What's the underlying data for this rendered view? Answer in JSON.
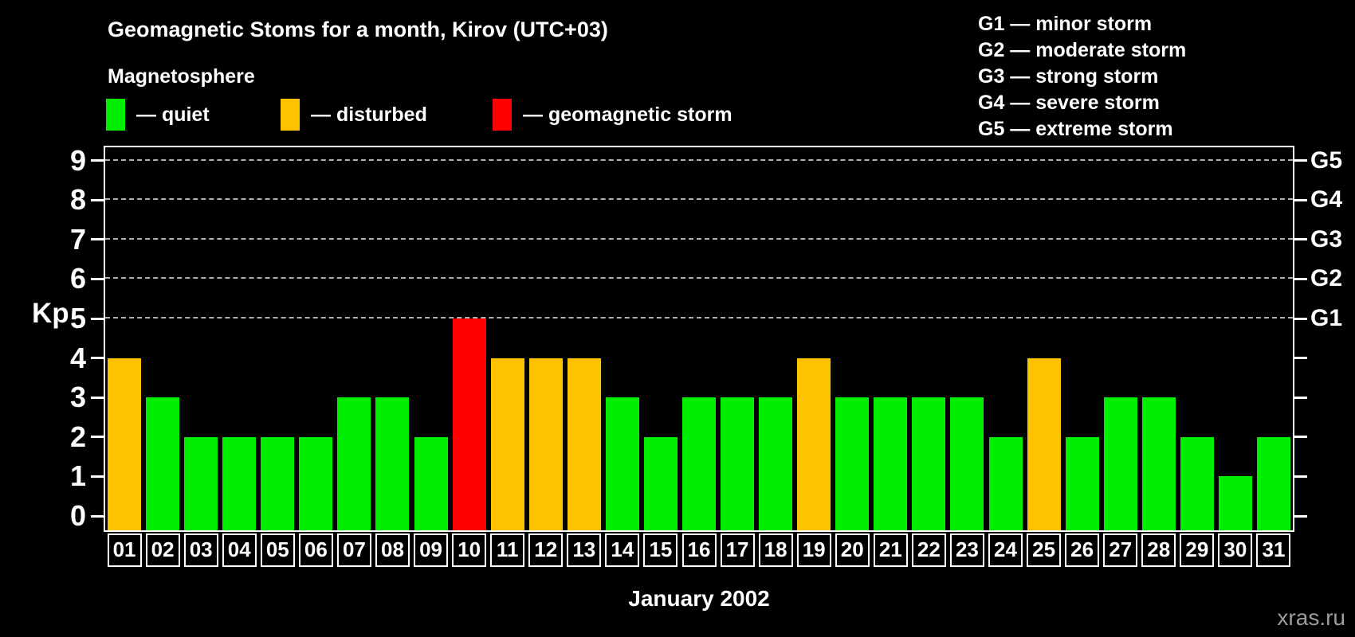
{
  "title": "Geomagnetic Stoms for a month, Kirov (UTC+03)",
  "legend": {
    "heading": "Magnetosphere",
    "items": [
      {
        "key": "quiet",
        "label": "— quiet",
        "color": "#00ee00"
      },
      {
        "key": "disturbed",
        "label": "— disturbed",
        "color": "#ffc200"
      },
      {
        "key": "storm",
        "label": "— geomagnetic storm",
        "color": "#ff0000"
      }
    ]
  },
  "storm_scale": {
    "items": [
      "G1 — minor storm",
      "G2 — moderate storm",
      "G3 — strong storm",
      "G4 — severe storm",
      "G5 — extreme storm"
    ]
  },
  "watermark": "xras.ru",
  "chart_data": {
    "type": "bar",
    "title": "Geomagnetic Stoms for a month, Kirov (UTC+03)",
    "xlabel": "January 2002",
    "ylabel": "Kp",
    "ylim": [
      0,
      9.4
    ],
    "yticks": [
      0,
      1,
      2,
      3,
      4,
      5,
      6,
      7,
      8,
      9
    ],
    "gridlines_at": [
      5,
      6,
      7,
      8,
      9
    ],
    "grid": "dashed horizontal at Kp 5-9 only",
    "legend_position": "top",
    "right_axis": [
      {
        "kp": 5,
        "label": "G1"
      },
      {
        "kp": 6,
        "label": "G2"
      },
      {
        "kp": 7,
        "label": "G3"
      },
      {
        "kp": 8,
        "label": "G4"
      },
      {
        "kp": 9,
        "label": "G5"
      }
    ],
    "categories": [
      "01",
      "02",
      "03",
      "04",
      "05",
      "06",
      "07",
      "08",
      "09",
      "10",
      "11",
      "12",
      "13",
      "14",
      "15",
      "16",
      "17",
      "18",
      "19",
      "20",
      "21",
      "22",
      "23",
      "24",
      "25",
      "26",
      "27",
      "28",
      "29",
      "30",
      "31"
    ],
    "values": [
      4,
      3,
      2,
      2,
      2,
      2,
      3,
      3,
      2,
      5,
      4,
      4,
      4,
      3,
      2,
      3,
      3,
      3,
      4,
      3,
      3,
      3,
      3,
      2,
      4,
      2,
      3,
      3,
      2,
      1,
      2
    ],
    "statuses": [
      "disturbed",
      "quiet",
      "quiet",
      "quiet",
      "quiet",
      "quiet",
      "quiet",
      "quiet",
      "quiet",
      "storm",
      "disturbed",
      "disturbed",
      "disturbed",
      "quiet",
      "quiet",
      "quiet",
      "quiet",
      "quiet",
      "disturbed",
      "quiet",
      "quiet",
      "quiet",
      "quiet",
      "quiet",
      "disturbed",
      "quiet",
      "quiet",
      "quiet",
      "quiet",
      "quiet",
      "quiet"
    ],
    "status_colors": {
      "quiet": "#00ee00",
      "disturbed": "#ffc200",
      "storm": "#ff0000"
    }
  }
}
